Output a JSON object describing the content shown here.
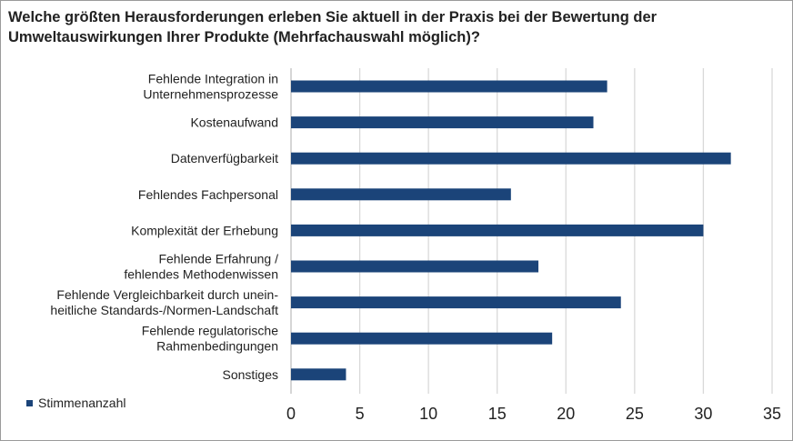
{
  "chart_data": {
    "type": "bar",
    "orientation": "horizontal",
    "title": "Welche größten Herausforderungen erleben Sie aktuell in der Praxis bei der Bewertung der Umweltauswirkungen Ihrer Produkte (Mehrfachauswahl möglich)?",
    "categories": [
      [
        "Fehlende Integration in",
        "Unternehmensprozesse"
      ],
      [
        "Kostenaufwand"
      ],
      [
        "Datenverfügbarkeit"
      ],
      [
        "Fehlendes Fachpersonal"
      ],
      [
        "Komplexität der Erhebung"
      ],
      [
        "Fehlende Erfahrung /",
        "fehlendes Methodenwissen"
      ],
      [
        "Fehlende Vergleichbarkeit durch unein-",
        "heitliche Standards-/Normen-Landschaft"
      ],
      [
        "Fehlende regulatorische",
        "Rahmenbedingungen"
      ],
      [
        "Sonstiges"
      ]
    ],
    "series": [
      {
        "name": "Stimmenanzahl",
        "values": [
          23,
          22,
          32,
          16,
          30,
          18,
          24,
          19,
          4
        ],
        "color": "#1b4479"
      }
    ],
    "xlim": [
      0,
      35
    ],
    "xticks": [
      0,
      5,
      10,
      15,
      20,
      25,
      30,
      35
    ],
    "grid": true,
    "grid_color": "#d9d9d9",
    "legend": "bottom-left",
    "xlabel": "",
    "ylabel": ""
  }
}
